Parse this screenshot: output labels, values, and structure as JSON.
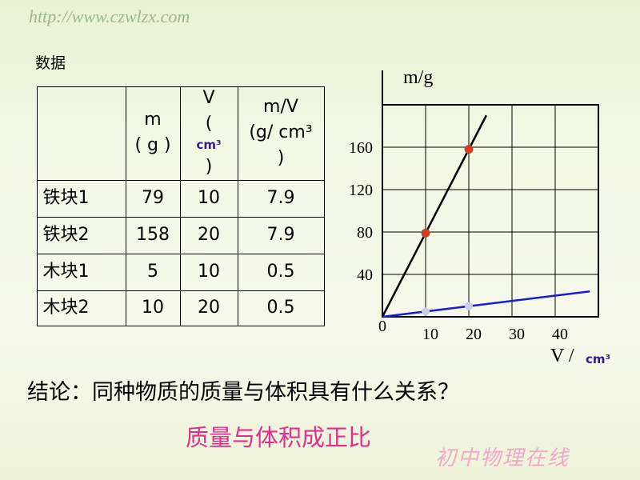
{
  "watermark_top": "http://www.czwlzx.com",
  "watermark_bottom": "初中物理在线",
  "table_caption": "数据",
  "table": {
    "header": [
      [
        "m",
        "( g )"
      ],
      [
        "V",
        "(",
        "cm³",
        ")"
      ],
      [
        "m/V",
        "(g/ cm³",
        ")"
      ]
    ],
    "rows": [
      [
        "铁块1",
        79,
        10,
        7.9
      ],
      [
        "铁块2",
        158,
        20,
        7.9
      ],
      [
        "木块1",
        5,
        10,
        0.5
      ],
      [
        "木块2",
        10,
        20,
        0.5
      ]
    ]
  },
  "chart_data": {
    "type": "scatter",
    "y_label": "m/g",
    "x_label": "V /",
    "x_unit": "cm³",
    "xlim": [
      0,
      50
    ],
    "ylim": [
      0,
      200
    ],
    "xticks": [
      0,
      10,
      20,
      30,
      40
    ],
    "yticks": [
      40,
      80,
      120,
      160
    ],
    "grid": true,
    "series": [
      {
        "color": "#e03a1c",
        "line_color": "#000000",
        "x": [
          10,
          20
        ],
        "values": [
          79,
          158
        ]
      },
      {
        "color": "#c9cdf0",
        "line_color": "#1a1ad8",
        "x": [
          10,
          20
        ],
        "values": [
          5,
          10
        ]
      }
    ]
  },
  "question": "结论：同种物质的质量与体积具有什么关系？",
  "answer": "质量与体积成正比"
}
